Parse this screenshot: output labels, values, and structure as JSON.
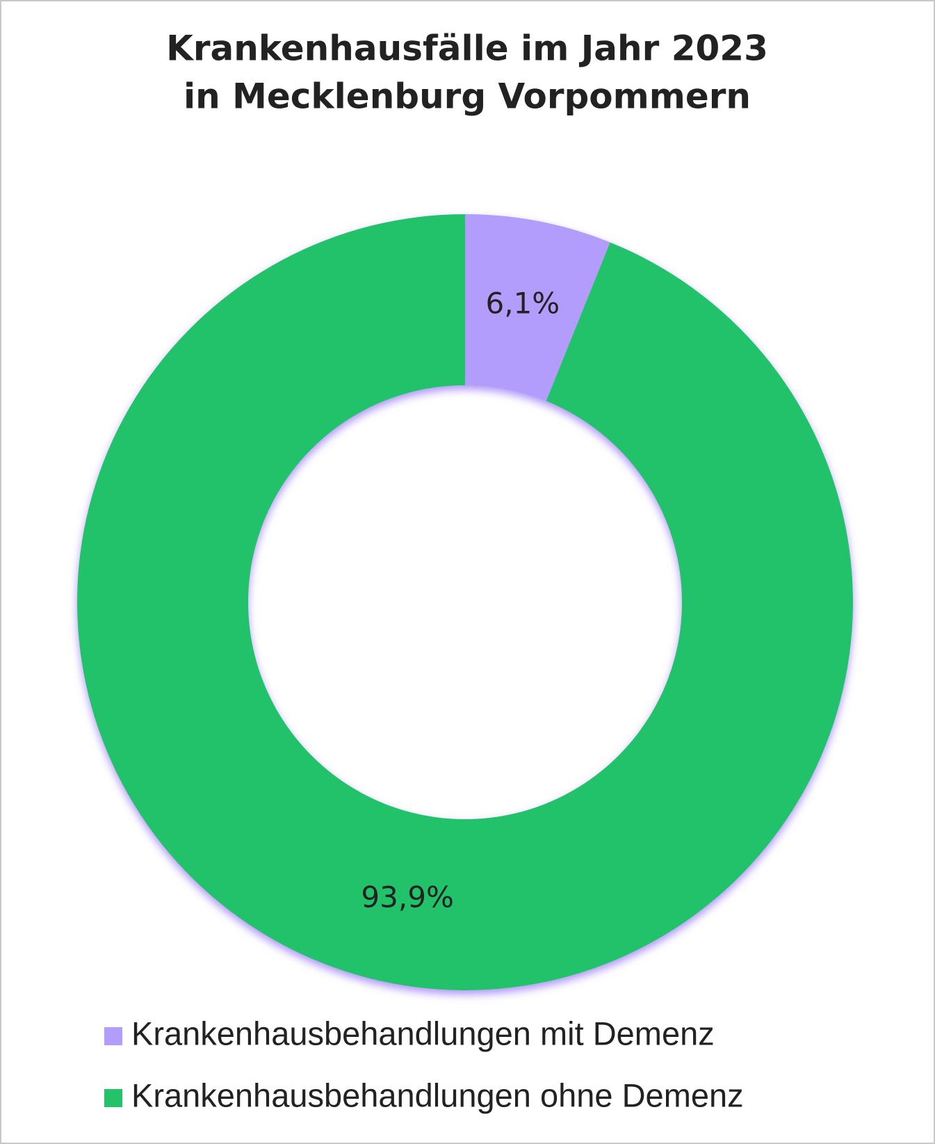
{
  "chart_data": {
    "type": "donut",
    "title": [
      "Krankenhausfälle im Jahr 2023",
      "in Mecklenburg Vorpommern"
    ],
    "categories": [
      "Krankenhausbehandlungen mit Demenz",
      "Krankenhausbehandlungen ohne Demenz"
    ],
    "values": [
      6.1,
      93.9
    ],
    "value_labels": [
      "6,1%",
      "93,9%"
    ],
    "colors": [
      "#b39dfc",
      "#24c26b"
    ],
    "legend": "bottom"
  }
}
